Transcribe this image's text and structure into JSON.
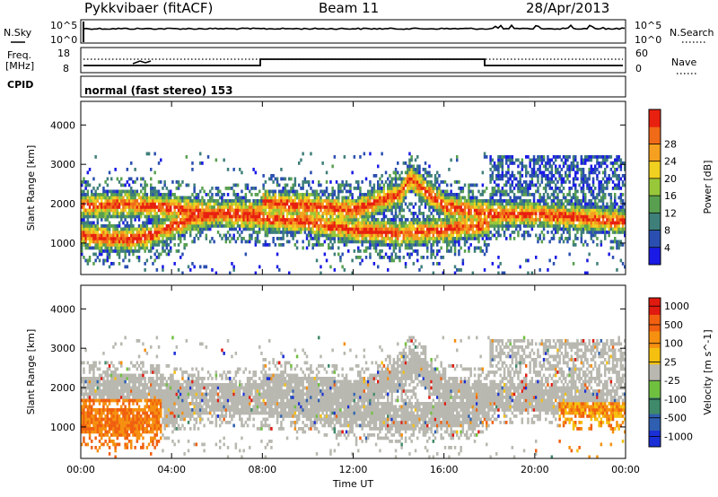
{
  "header": {
    "station": "Pykkvibaer (fitACF)",
    "beam": "Beam 11",
    "date": "28/Apr/2013"
  },
  "strip_labels": {
    "nsky": "N.Sky",
    "nsky_hi": "10^5",
    "nsky_lo": "10^0",
    "nsearch": "N.Search",
    "nsearch_hi": "10^5",
    "nsearch_lo": "10^0",
    "freq_line1": "Freq.",
    "freq_line2": "[MHz]",
    "freq_hi": "18",
    "freq_lo": "8",
    "nave": "Nave",
    "nave_hi": "60",
    "nave_lo": "0",
    "cpid": "CPID",
    "mode": "normal (fast stereo) 153"
  },
  "chart_data": [
    {
      "type": "heatmap",
      "title": "Power",
      "ylabel": "Slant Range [km]",
      "ylim": [
        200,
        4600
      ],
      "yticks": [
        "1000",
        "2000",
        "3000",
        "4000"
      ],
      "xticks": [
        "00:00",
        "04:00",
        "08:00",
        "12:00",
        "16:00",
        "20:00",
        "00:00"
      ],
      "colorbar": {
        "label": "Power [dB]",
        "ticks": [
          "4",
          "8",
          "12",
          "16",
          "20",
          "24",
          "28"
        ],
        "colors": [
          "#1a1ae6",
          "#2a4fb0",
          "#3f7f7a",
          "#58a050",
          "#98c83a",
          "#f0d020",
          "#f5a020",
          "#f06a18",
          "#e82010"
        ]
      },
      "echo_bands": [
        {
          "time_h": [
            0,
            1,
            2,
            3,
            4,
            5,
            6,
            7,
            8
          ],
          "center_km": [
            1150,
            1100,
            1050,
            1150,
            1400,
            1600,
            1700,
            1750,
            1700
          ]
        },
        {
          "time_h": [
            0,
            2,
            4,
            6,
            8,
            10,
            12,
            14,
            16,
            18
          ],
          "center_km": [
            1900,
            1950,
            1850,
            1700,
            1600,
            1500,
            1300,
            1200,
            1300,
            1450
          ]
        },
        {
          "time_h": [
            8,
            10,
            12,
            14,
            14.5,
            16,
            18,
            20,
            22,
            24
          ],
          "center_km": [
            2000,
            1900,
            1800,
            2200,
            2600,
            1900,
            1700,
            1700,
            1600,
            1500
          ]
        }
      ]
    },
    {
      "type": "heatmap",
      "title": "Velocity",
      "ylabel": "Slant Range [km]",
      "ylim": [
        200,
        4600
      ],
      "yticks": [
        "1000",
        "2000",
        "3000",
        "4000"
      ],
      "xticks": [
        "00:00",
        "04:00",
        "08:00",
        "12:00",
        "16:00",
        "20:00",
        "00:00"
      ],
      "xlabel": "Time UT",
      "colorbar": {
        "label": "Velocity [m s^-1]",
        "ticks": [
          "1000",
          "500",
          "100",
          "25",
          "-25",
          "-100",
          "-500",
          "-1000"
        ],
        "colors": [
          "#1a2fd6",
          "#2f5fb0",
          "#3f8a6a",
          "#70c040",
          "#b8b8b0",
          "#f5c010",
          "#f59010",
          "#f06010",
          "#e01a10"
        ]
      }
    }
  ]
}
